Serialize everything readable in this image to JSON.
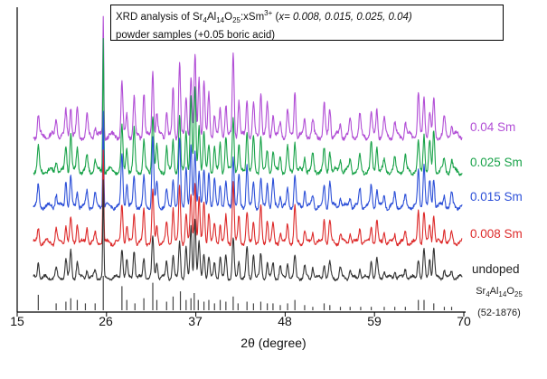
{
  "chart_data": {
    "type": "line",
    "title_parts": {
      "line1_pre": "XRD analysis of Sr",
      "sub1": "4",
      "mid1": "Al",
      "sub2": "14",
      "mid2": "O",
      "sub3": "25",
      "mid3": ":xSm",
      "sup1": "3+",
      "mid4": " (",
      "xvals": "x= 0.008, 0.015, 0.025, 0.04)",
      "line2": "powder samples (+0.05 boric acid)"
    },
    "xlabel": "2θ (degree)",
    "ylabel": "",
    "xlim": [
      15,
      70
    ],
    "x_ticks": [
      "15",
      "26",
      "37",
      "48",
      "59",
      "70"
    ],
    "x_tick_values": [
      15,
      26,
      37,
      48,
      59,
      70
    ],
    "series": [
      {
        "name": "0.04 Sm",
        "color": "#b24fd6"
      },
      {
        "name": "0.025 Sm",
        "color": "#1aa34a"
      },
      {
        "name": "0.015 Sm",
        "color": "#2d50d8"
      },
      {
        "name": "0.008 Sm",
        "color": "#dd2a2a"
      },
      {
        "name": "undoped",
        "color": "#333333"
      }
    ],
    "reference": {
      "name_pre": "Sr",
      "sub1": "4",
      "mid1": "Al",
      "sub2": "14",
      "mid2": "O",
      "sub3": "25",
      "card": "(52-1876)",
      "peaks": [
        [
          17.6,
          0.45
        ],
        [
          19.8,
          0.2
        ],
        [
          21.0,
          0.25
        ],
        [
          21.6,
          0.35
        ],
        [
          22.4,
          0.3
        ],
        [
          23.4,
          0.2
        ],
        [
          24.6,
          0.2
        ],
        [
          25.6,
          1.0
        ],
        [
          27.9,
          0.7
        ],
        [
          28.5,
          0.3
        ],
        [
          29.5,
          0.2
        ],
        [
          30.6,
          0.35
        ],
        [
          31.7,
          0.8
        ],
        [
          32.2,
          0.3
        ],
        [
          33.4,
          0.25
        ],
        [
          34.2,
          0.4
        ],
        [
          35.1,
          0.55
        ],
        [
          35.8,
          0.3
        ],
        [
          36.4,
          0.35
        ],
        [
          36.8,
          0.5
        ],
        [
          37.3,
          0.3
        ],
        [
          38.0,
          0.25
        ],
        [
          38.6,
          0.3
        ],
        [
          39.3,
          0.2
        ],
        [
          40.0,
          0.3
        ],
        [
          40.7,
          0.25
        ],
        [
          41.6,
          0.4
        ],
        [
          42.2,
          0.2
        ],
        [
          43.3,
          0.25
        ],
        [
          44.1,
          0.2
        ],
        [
          45.0,
          0.25
        ],
        [
          45.8,
          0.2
        ],
        [
          46.5,
          0.2
        ],
        [
          47.4,
          0.15
        ],
        [
          48.3,
          0.2
        ],
        [
          49.2,
          0.3
        ],
        [
          50.4,
          0.15
        ],
        [
          51.4,
          0.1
        ],
        [
          52.8,
          0.2
        ],
        [
          53.5,
          0.15
        ],
        [
          54.8,
          0.1
        ],
        [
          56.0,
          0.1
        ],
        [
          57.3,
          0.1
        ],
        [
          58.6,
          0.1
        ],
        [
          60.2,
          0.1
        ],
        [
          61.5,
          0.1
        ],
        [
          62.8,
          0.1
        ],
        [
          64.4,
          0.3
        ],
        [
          65.1,
          0.3
        ],
        [
          66.3,
          0.2
        ],
        [
          67.6,
          0.1
        ],
        [
          68.5,
          0.1
        ]
      ]
    },
    "pattern_peaks": [
      [
        17.6,
        0.18
      ],
      [
        19.8,
        0.12
      ],
      [
        21.0,
        0.22
      ],
      [
        21.6,
        0.28
      ],
      [
        22.4,
        0.18
      ],
      [
        23.6,
        0.14
      ],
      [
        24.6,
        0.1
      ],
      [
        25.6,
        1.0
      ],
      [
        27.9,
        0.42
      ],
      [
        28.5,
        0.2
      ],
      [
        29.4,
        0.3
      ],
      [
        30.6,
        0.28
      ],
      [
        31.7,
        0.55
      ],
      [
        32.2,
        0.2
      ],
      [
        33.4,
        0.18
      ],
      [
        34.2,
        0.3
      ],
      [
        35.0,
        0.55
      ],
      [
        35.8,
        0.35
      ],
      [
        36.4,
        0.55
      ],
      [
        36.9,
        0.62
      ],
      [
        37.4,
        0.4
      ],
      [
        38.0,
        0.35
      ],
      [
        38.6,
        0.3
      ],
      [
        39.3,
        0.2
      ],
      [
        40.0,
        0.22
      ],
      [
        40.7,
        0.25
      ],
      [
        41.6,
        0.52
      ],
      [
        42.3,
        0.25
      ],
      [
        43.3,
        0.35
      ],
      [
        44.1,
        0.25
      ],
      [
        45.0,
        0.3
      ],
      [
        45.8,
        0.22
      ],
      [
        46.5,
        0.2
      ],
      [
        47.4,
        0.12
      ],
      [
        48.3,
        0.18
      ],
      [
        49.2,
        0.3
      ],
      [
        50.4,
        0.14
      ],
      [
        51.4,
        0.12
      ],
      [
        52.8,
        0.2
      ],
      [
        53.5,
        0.22
      ],
      [
        54.8,
        0.1
      ],
      [
        56.0,
        0.1
      ],
      [
        57.2,
        0.15
      ],
      [
        58.6,
        0.2
      ],
      [
        59.3,
        0.2
      ],
      [
        60.2,
        0.1
      ],
      [
        61.5,
        0.1
      ],
      [
        62.8,
        0.1
      ],
      [
        64.4,
        0.3
      ],
      [
        65.1,
        0.35
      ],
      [
        65.8,
        0.22
      ],
      [
        66.3,
        0.3
      ],
      [
        67.6,
        0.12
      ],
      [
        68.5,
        0.1
      ]
    ]
  }
}
